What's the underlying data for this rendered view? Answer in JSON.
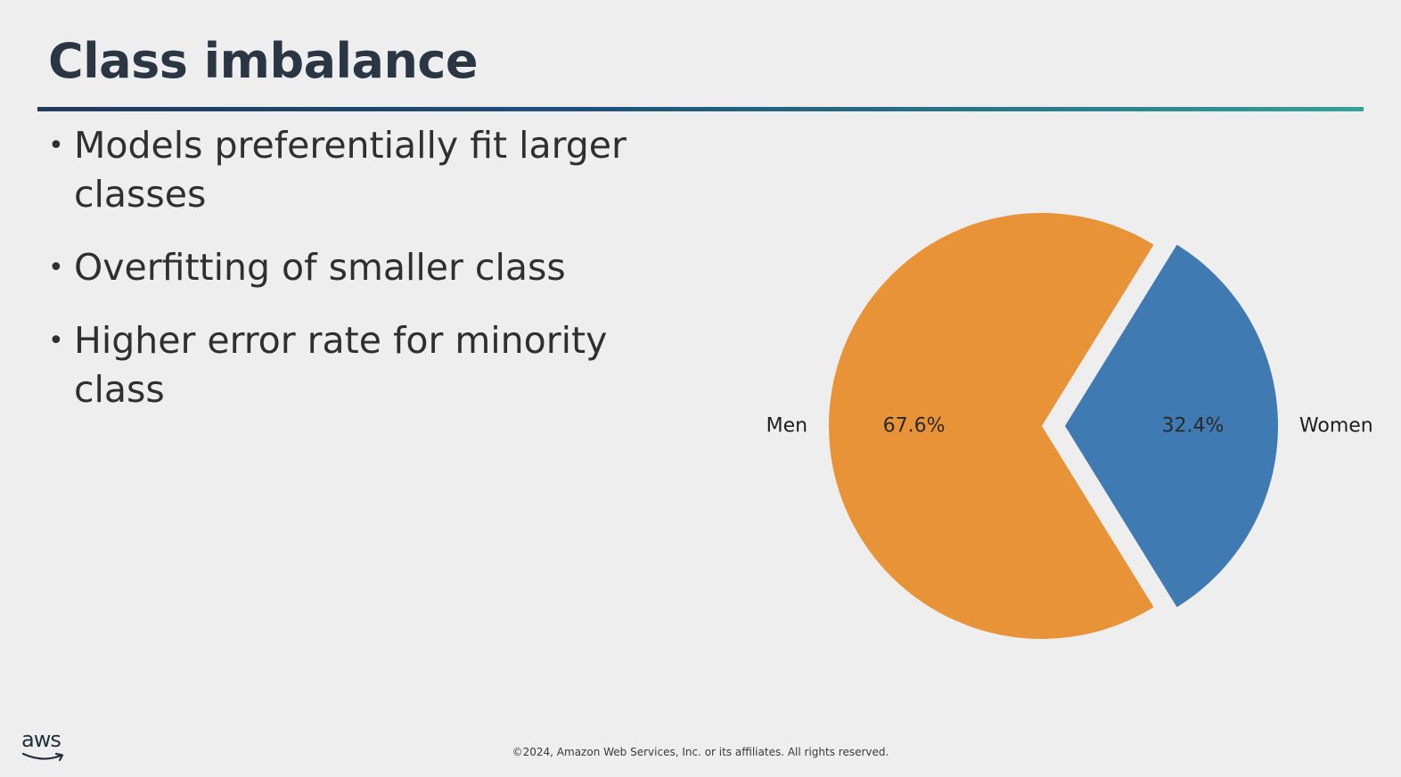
{
  "slide": {
    "title": "Class imbalance",
    "bullets": [
      "Models preferentially fit larger classes",
      "Overfitting of smaller class",
      "Higher error rate for minority class"
    ],
    "footer": "©2024, Amazon Web Services, Inc. or its affiliates. All rights reserved.",
    "logo_text": "aws"
  },
  "colors": {
    "title": "#2b3645",
    "accent_rule_start": "#1f3a5c",
    "accent_rule_end": "#36a098",
    "men": "#e89338",
    "women": "#3f7ab2"
  },
  "chart_data": {
    "type": "pie",
    "title": "",
    "slices": [
      {
        "label": "Men",
        "value": 67.6,
        "pct_label": "67.6%",
        "color": "#e89338",
        "exploded": false
      },
      {
        "label": "Women",
        "value": 32.4,
        "pct_label": "32.4%",
        "color": "#3f7ab2",
        "exploded": true
      }
    ],
    "legend": "none"
  }
}
